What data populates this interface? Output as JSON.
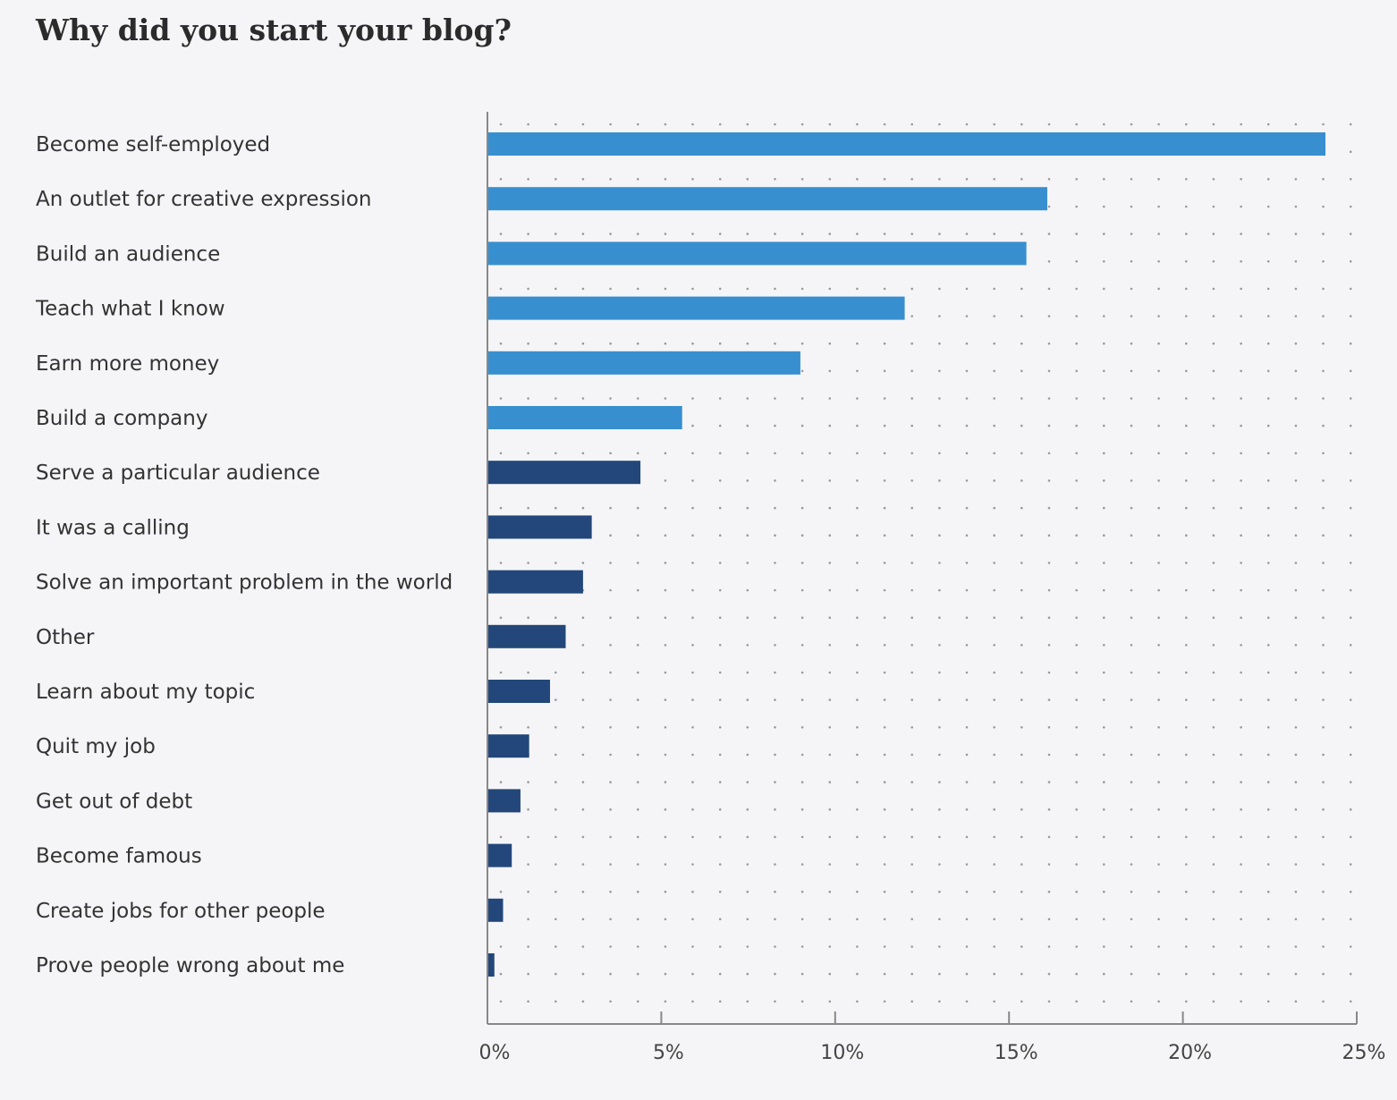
{
  "chart_data": {
    "type": "bar",
    "orientation": "horizontal",
    "title": "Why did you start your blog?",
    "xlabel": "",
    "ylabel": "",
    "xlim": [
      0,
      25
    ],
    "x_ticks": [
      "0%",
      "5%",
      "10%",
      "15%",
      "20%",
      "25%"
    ],
    "grid": "dotted",
    "categories": [
      "Become self-employed",
      "An outlet for creative expression",
      "Build an audience",
      "Teach what I know",
      "Earn more money",
      "Build a company",
      "Serve a particular audience",
      "It was a calling",
      "Solve an important problem in the world",
      "Other",
      "Learn about my topic",
      "Quit my job",
      "Get out of debt",
      "Become famous",
      "Create jobs for other people",
      "Prove people wrong about me"
    ],
    "values": [
      24.1,
      16.1,
      15.5,
      12.0,
      9.0,
      5.6,
      4.4,
      3.0,
      2.75,
      2.25,
      1.8,
      1.2,
      0.95,
      0.7,
      0.45,
      0.2
    ],
    "colors": {
      "highlight": "#388fd0",
      "other": "#23477a"
    },
    "highlight_count": 6
  }
}
